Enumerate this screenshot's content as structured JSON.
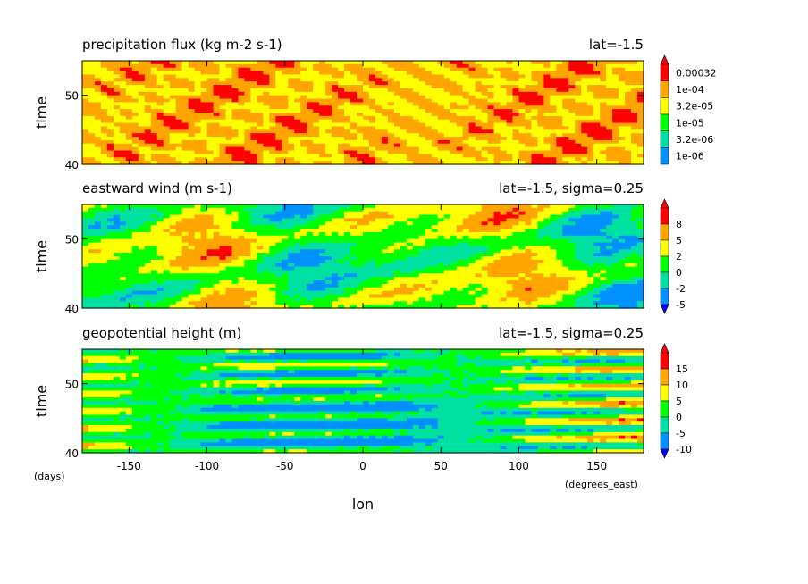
{
  "chart_data": [
    {
      "type": "heatmap",
      "title": "precipitation flux (kg m-2 s-1)",
      "subtitle": "lat=-1.5",
      "ylabel": "time",
      "yticks": [
        40,
        50
      ],
      "ylim": [
        40,
        55
      ],
      "xlim": [
        -180,
        180
      ],
      "colorbar": {
        "labels": [
          "0.00032",
          "1e-04",
          "3.2e-05",
          "1e-05",
          "3.2e-06",
          "1e-06"
        ],
        "colors": [
          "#ff0000",
          "#ffa500",
          "#ffff00",
          "#00ff00",
          "#00e0a0",
          "#0090ff"
        ]
      },
      "field": {
        "palette": [
          "#ffa500",
          "#ffff00",
          "#ffa500",
          "#ff0000"
        ],
        "seed": 3,
        "style": "diagonal"
      }
    },
    {
      "type": "heatmap",
      "title": "eastward wind (m s-1)",
      "subtitle": "lat=-1.5, sigma=0.25",
      "ylabel": "time",
      "yticks": [
        40,
        50
      ],
      "ylim": [
        40,
        55
      ],
      "xlim": [
        -180,
        180
      ],
      "colorbar": {
        "labels": [
          "8",
          "5",
          "2",
          "0",
          "-2",
          "-5"
        ],
        "colors": [
          "#ff0000",
          "#ffa500",
          "#ffff00",
          "#00ff00",
          "#00e0a0",
          "#0090ff",
          "#0000ff"
        ]
      },
      "field": {
        "palette": [
          "#0090ff",
          "#00e0a0",
          "#00ff00",
          "#ffff00",
          "#ffa500",
          "#ff0000"
        ],
        "seed": 11,
        "style": "blobs"
      }
    },
    {
      "type": "heatmap",
      "title": "geopotential height (m)",
      "subtitle": "lat=-1.5, sigma=0.25",
      "ylabel": "time",
      "xlabel": "lon",
      "xunit": "(degrees_east)",
      "yunit": "(days)",
      "xticks": [
        -150,
        -100,
        -50,
        0,
        50,
        100,
        150
      ],
      "yticks": [
        40,
        50
      ],
      "ylim": [
        40,
        55
      ],
      "xlim": [
        -180,
        180
      ],
      "colorbar": {
        "labels": [
          "15",
          "10",
          "5",
          "0",
          "-5",
          "-10"
        ],
        "colors": [
          "#ff0000",
          "#ffa500",
          "#ffff00",
          "#00ff00",
          "#00e0a0",
          "#0090ff",
          "#0000ff"
        ]
      },
      "field": {
        "palette": [
          "#0090ff",
          "#00e0a0",
          "#00ff00",
          "#ffff00",
          "#ffa500",
          "#ff0000"
        ],
        "seed": 29,
        "style": "bands"
      }
    }
  ]
}
